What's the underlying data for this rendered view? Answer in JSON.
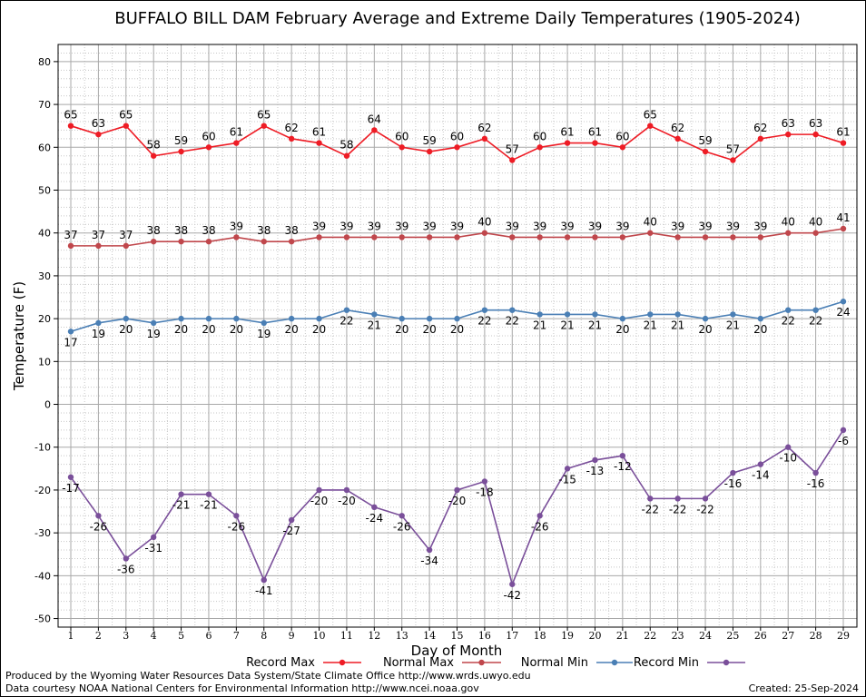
{
  "chart_data": {
    "type": "line",
    "title": "BUFFALO BILL DAM February Average and Extreme Daily Temperatures (1905-2024)",
    "xlabel": "Day of Month",
    "ylabel": "Temperature (F)",
    "ylim": [
      -52,
      84
    ],
    "yticks": [
      -50,
      -40,
      -30,
      -20,
      -10,
      0,
      10,
      20,
      30,
      40,
      50,
      60,
      70,
      80
    ],
    "categories": [
      "1",
      "2",
      "3",
      "4",
      "5",
      "6",
      "7",
      "8",
      "9",
      "10",
      "11",
      "12",
      "13",
      "14",
      "15",
      "16",
      "17",
      "18",
      "19",
      "20",
      "21",
      "22",
      "23",
      "24",
      "25",
      "26",
      "27",
      "28",
      "29"
    ],
    "grid": true,
    "legend_position": "bottom",
    "series": [
      {
        "name": "Record Max",
        "color": "#ee1c25",
        "label_pos": "above",
        "values": [
          65,
          63,
          65,
          58,
          59,
          60,
          61,
          65,
          62,
          61,
          58,
          64,
          60,
          59,
          60,
          62,
          57,
          60,
          61,
          61,
          60,
          65,
          62,
          59,
          57,
          62,
          63,
          63,
          61
        ]
      },
      {
        "name": "Normal Max",
        "color": "#c0474c",
        "label_pos": "above",
        "values": [
          37,
          37,
          37,
          38,
          38,
          38,
          39,
          38,
          38,
          39,
          39,
          39,
          39,
          39,
          39,
          40,
          39,
          39,
          39,
          39,
          39,
          40,
          39,
          39,
          39,
          39,
          40,
          40,
          41
        ]
      },
      {
        "name": "Normal Min",
        "color": "#4a7fb5",
        "label_pos": "below",
        "values": [
          17,
          19,
          20,
          19,
          20,
          20,
          20,
          19,
          20,
          20,
          22,
          21,
          20,
          20,
          20,
          22,
          22,
          21,
          21,
          21,
          20,
          21,
          21,
          20,
          21,
          20,
          22,
          22,
          24
        ]
      },
      {
        "name": "Record Min",
        "color": "#7a4f9a",
        "label_pos": "below",
        "values": [
          -17,
          -26,
          -36,
          -31,
          -21,
          -21,
          -26,
          -41,
          -27,
          -20,
          -20,
          -24,
          -26,
          -34,
          -20,
          -18,
          -42,
          -26,
          -15,
          -13,
          -12,
          -22,
          -22,
          -22,
          -16,
          -14,
          -10,
          -16,
          -6
        ]
      }
    ]
  },
  "footer": {
    "produced_by": "Produced by the Wyoming Water Resources Data System/State Climate Office http://www.wrds.uwyo.edu",
    "courtesy": "Data courtesy NOAA National Centers for Environmental Information http://www.ncei.noaa.gov",
    "created": "Created:  25-Sep-2024"
  }
}
